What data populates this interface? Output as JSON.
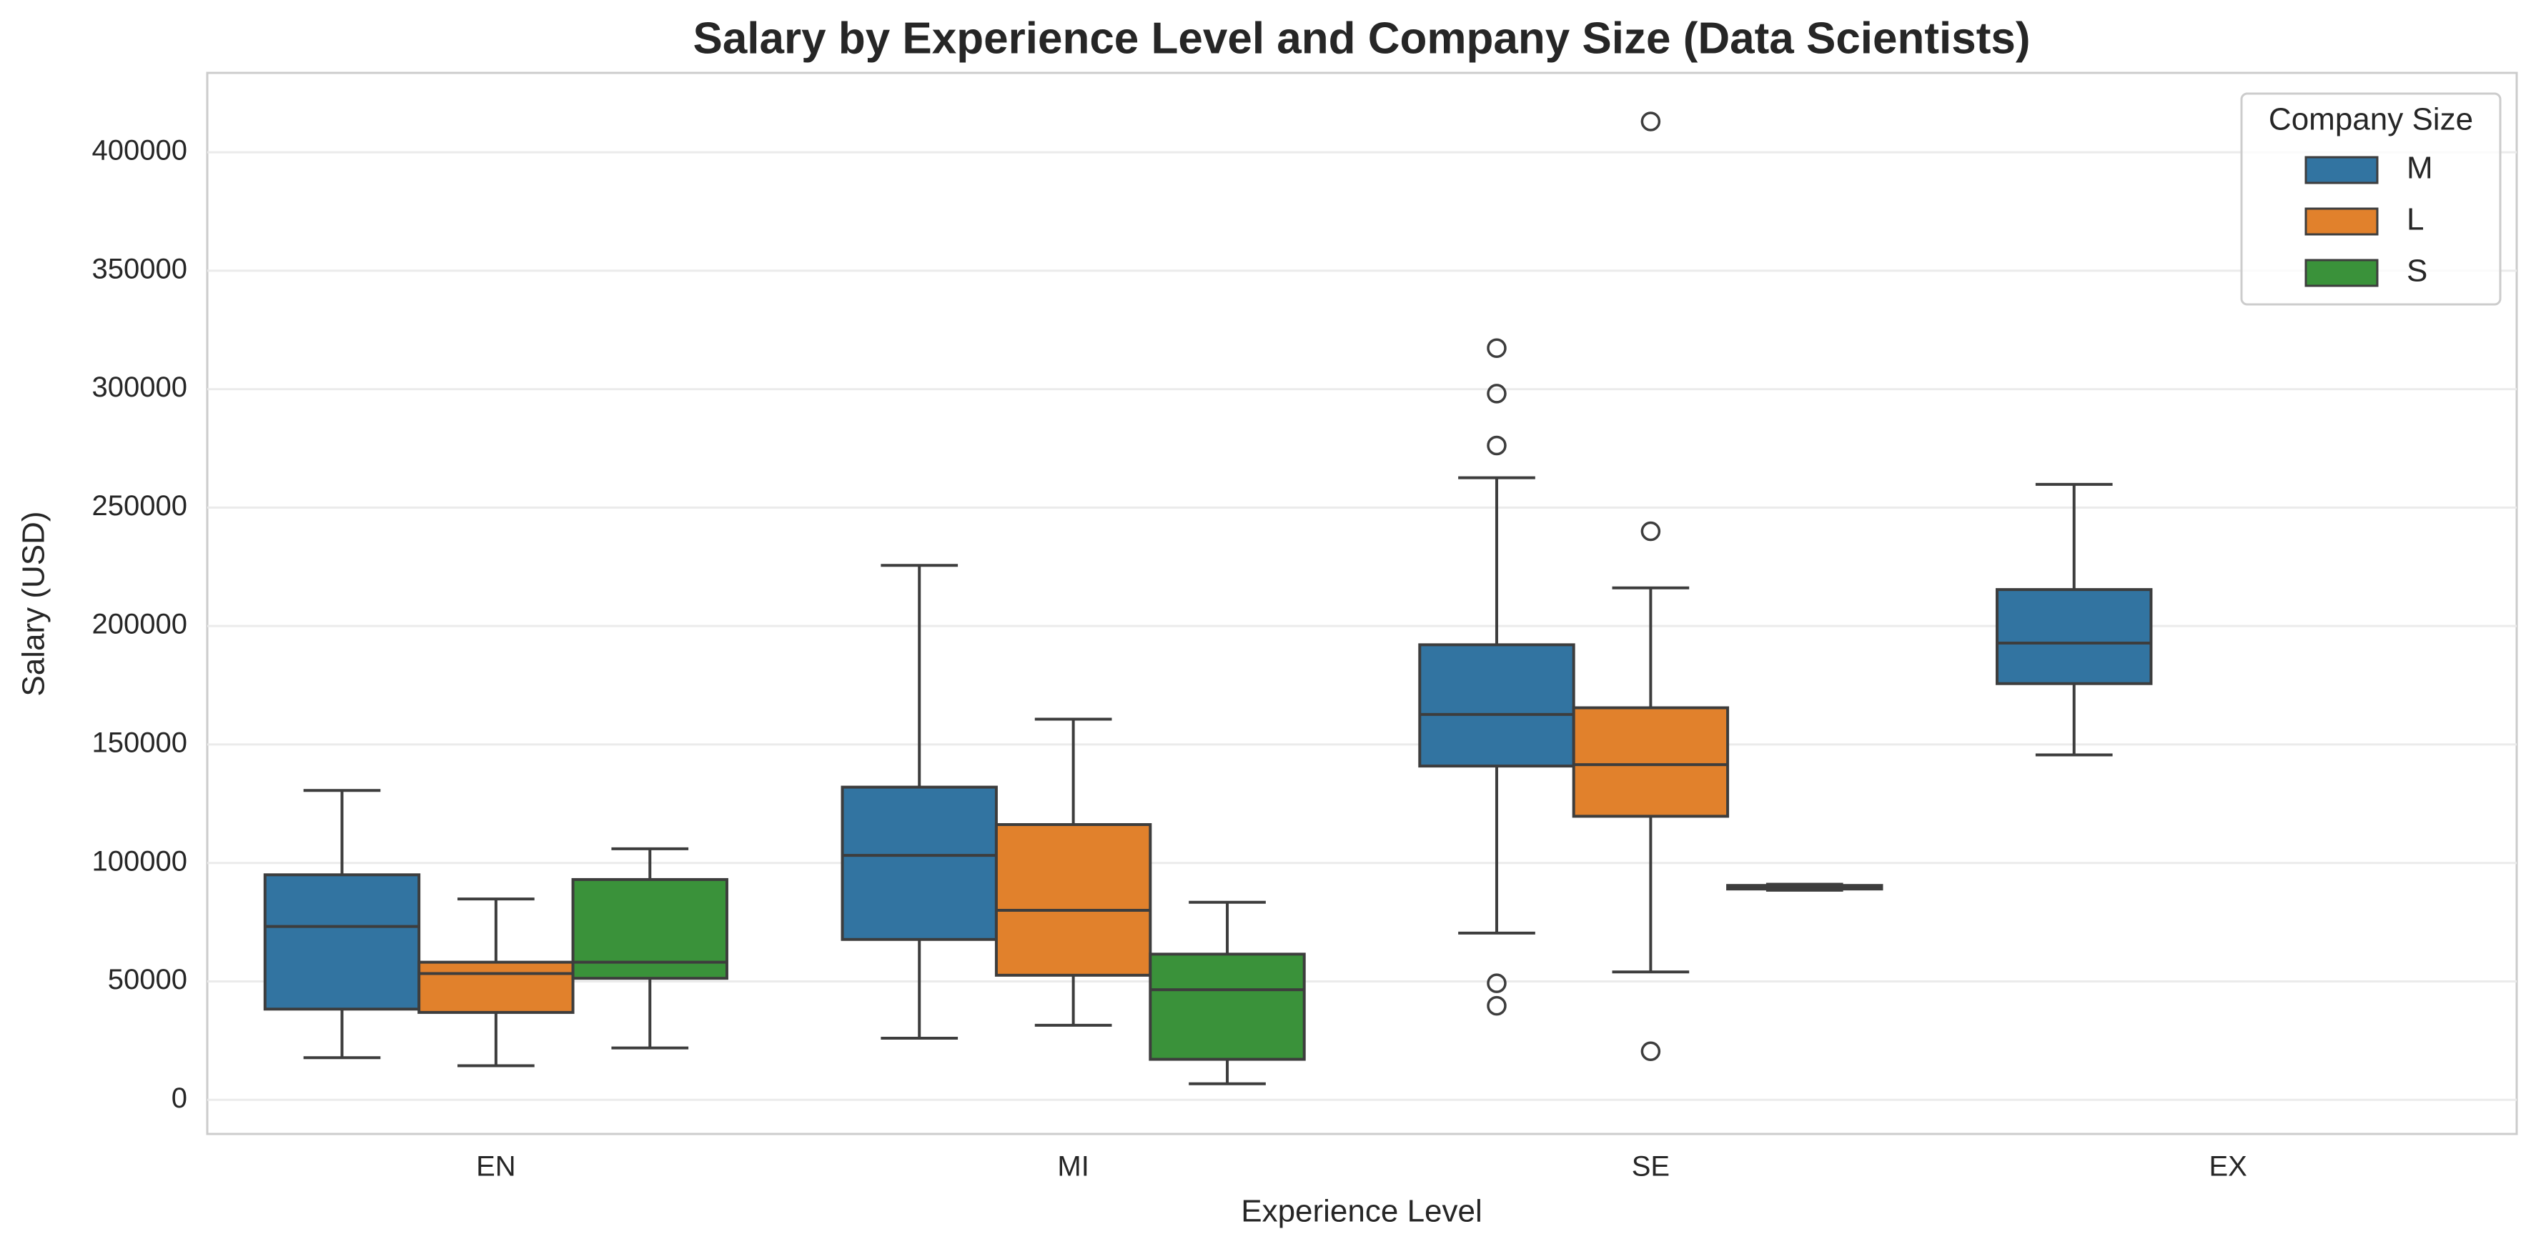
{
  "chart_data": {
    "type": "box",
    "title": "Salary by Experience Level and Company Size (Data Scientists)",
    "x_label": "Experience Level",
    "y_label": "Salary (USD)",
    "categories": [
      "EN",
      "MI",
      "SE",
      "EX"
    ],
    "ylim": [
      -14400,
      433500
    ],
    "yticks": [
      0,
      50000,
      100000,
      150000,
      200000,
      250000,
      300000,
      350000,
      400000
    ],
    "grid": true,
    "legend_title": "Company Size",
    "legend_position": "upper right",
    "series": [
      {
        "name": "M",
        "color": "#3274a1",
        "values": [
          {
            "low": 17800,
            "q1": 38300,
            "median": 73200,
            "q3": 95000,
            "high": 130600,
            "outliers": []
          },
          {
            "low": 26000,
            "q1": 67700,
            "median": 103200,
            "q3": 132000,
            "high": 225600,
            "outliers": []
          },
          {
            "low": 70400,
            "q1": 140900,
            "median": 162700,
            "q3": 192100,
            "high": 262600,
            "outliers": [
              317300,
              298100,
              276200,
              49200,
              39700
            ]
          },
          {
            "low": 145600,
            "q1": 175700,
            "median": 192800,
            "q3": 215400,
            "high": 259800,
            "outliers": []
          }
        ]
      },
      {
        "name": "L",
        "color": "#e1812c",
        "values": [
          {
            "low": 14400,
            "q1": 36900,
            "median": 53300,
            "q3": 58100,
            "high": 84800,
            "outliers": []
          },
          {
            "low": 31500,
            "q1": 52600,
            "median": 80000,
            "q3": 116200,
            "high": 160700,
            "outliers": []
          },
          {
            "low": 54000,
            "q1": 119700,
            "median": 141500,
            "q3": 165500,
            "high": 216100,
            "outliers": [
              240000,
              20500,
              413000
            ]
          },
          null
        ]
      },
      {
        "name": "S",
        "color": "#3a923a",
        "values": [
          {
            "low": 21900,
            "q1": 51300,
            "median": 58100,
            "q3": 93000,
            "high": 106000,
            "outliers": []
          },
          {
            "low": 6800,
            "q1": 17100,
            "median": 46500,
            "q3": 61500,
            "high": 83400,
            "outliers": []
          },
          {
            "low": 88500,
            "q1": 89000,
            "median": 90000,
            "q3": 90500,
            "high": 91000,
            "outliers": []
          },
          null
        ]
      }
    ]
  }
}
